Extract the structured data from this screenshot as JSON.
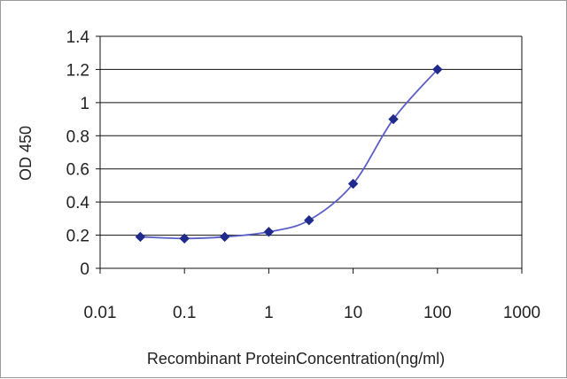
{
  "chart_data": {
    "type": "line",
    "xlabel": "Recombinant ProteinConcentration(ng/ml)",
    "ylabel": "OD 450",
    "x_scale": "log",
    "xlim": [
      0.01,
      1000
    ],
    "ylim": [
      0,
      1.4
    ],
    "x_ticks": [
      0.01,
      0.1,
      1,
      10,
      100,
      1000
    ],
    "x_tick_labels": [
      "0.01",
      "0.1",
      "1",
      "10",
      "100",
      "1000"
    ],
    "y_ticks": [
      0,
      0.2,
      0.4,
      0.6,
      0.8,
      1,
      1.2,
      1.4
    ],
    "y_tick_labels": [
      "0",
      "0.2",
      "0.4",
      "0.6",
      "0.8",
      "1",
      "1.2",
      "1.4"
    ],
    "grid": "horizontal",
    "series": [
      {
        "x": [
          0.03,
          0.1,
          0.3,
          1,
          3,
          10,
          30,
          100
        ],
        "y": [
          0.19,
          0.18,
          0.19,
          0.22,
          0.29,
          0.51,
          0.9,
          1.2
        ]
      }
    ],
    "colors": {
      "line": "#5b5fc7",
      "marker": "#1f2a8c",
      "grid": "#111111",
      "text": "#222222"
    }
  }
}
